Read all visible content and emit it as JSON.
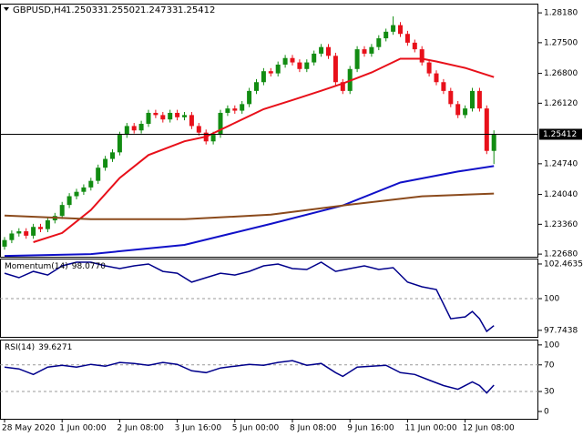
{
  "chart_data": [
    {
      "type": "candlestick",
      "title": "GBPUSD,H4",
      "categories": [
        "28 May 2020",
        null,
        null,
        null,
        null,
        null,
        null,
        null,
        "1 Jun 00:00",
        null,
        null,
        null,
        null,
        null,
        null,
        null,
        "2 Jun 08:00",
        null,
        null,
        null,
        null,
        null,
        null,
        null,
        "3 Jun 16:00",
        null,
        null,
        null,
        null,
        null,
        null,
        null,
        "5 Jun 00:00",
        null,
        null,
        null,
        null,
        null,
        null,
        null,
        "8 Jun 08:00",
        null,
        null,
        null,
        null,
        null,
        null,
        null,
        "9 Jun 16:00",
        null,
        null,
        null,
        null,
        null,
        null,
        null,
        "11 Jun 00:00",
        null,
        null,
        null,
        null,
        null,
        null,
        null,
        "12 Jun 08:00",
        null,
        null,
        null,
        null
      ],
      "open": [
        1.2285,
        1.23,
        1.2315,
        1.232,
        1.231,
        1.233,
        1.2325,
        1.2345,
        1.2355,
        1.238,
        1.24,
        1.241,
        1.242,
        1.2435,
        1.2465,
        1.2485,
        1.25,
        1.254,
        1.256,
        1.255,
        1.2565,
        1.259,
        1.2585,
        1.2575,
        1.259,
        1.258,
        1.2585,
        1.256,
        1.2545,
        1.2525,
        1.254,
        1.259,
        1.26,
        1.2595,
        1.261,
        1.264,
        1.266,
        1.2685,
        1.268,
        1.27,
        1.2715,
        1.2705,
        1.269,
        1.2705,
        1.2725,
        1.274,
        1.272,
        1.266,
        1.264,
        1.269,
        1.2735,
        1.2725,
        1.274,
        1.276,
        1.2775,
        1.279,
        1.277,
        1.275,
        1.2735,
        1.2705,
        1.268,
        1.266,
        1.264,
        1.261,
        1.2585,
        1.26,
        1.264,
        1.26,
        1.25033
      ],
      "high": [
        1.2307,
        1.2322,
        1.2327,
        1.2327,
        1.2337,
        1.2337,
        1.2352,
        1.2362,
        1.2387,
        1.2407,
        1.2417,
        1.2427,
        1.2442,
        1.2472,
        1.2492,
        1.2507,
        1.2547,
        1.2567,
        1.2567,
        1.2572,
        1.2597,
        1.2597,
        1.2592,
        1.2597,
        1.2597,
        1.2592,
        1.2592,
        1.2567,
        1.2552,
        1.2547,
        1.2597,
        1.2607,
        1.2607,
        1.2617,
        1.2647,
        1.2667,
        1.2692,
        1.2692,
        1.2707,
        1.2722,
        1.2722,
        1.2712,
        1.2712,
        1.2732,
        1.2747,
        1.2747,
        1.2727,
        1.2667,
        1.2697,
        1.2742,
        1.2742,
        1.2747,
        1.2767,
        1.2782,
        1.281,
        1.2797,
        1.2777,
        1.2757,
        1.2742,
        1.2712,
        1.2687,
        1.2667,
        1.2647,
        1.2617,
        1.2607,
        1.2647,
        1.2647,
        1.2607,
        1.25502
      ],
      "low": [
        1.2278,
        1.2293,
        1.2308,
        1.2303,
        1.2303,
        1.2318,
        1.2318,
        1.2338,
        1.2348,
        1.2373,
        1.2393,
        1.2403,
        1.2413,
        1.2428,
        1.2458,
        1.2478,
        1.2493,
        1.2533,
        1.2543,
        1.2543,
        1.2558,
        1.2578,
        1.2568,
        1.2568,
        1.2573,
        1.2573,
        1.2553,
        1.2538,
        1.2518,
        1.2518,
        1.2533,
        1.2583,
        1.2588,
        1.2588,
        1.2603,
        1.2633,
        1.2653,
        1.2673,
        1.2673,
        1.2693,
        1.2698,
        1.2683,
        1.2683,
        1.2698,
        1.2718,
        1.2713,
        1.2653,
        1.2633,
        1.2633,
        1.2683,
        1.2718,
        1.2718,
        1.2733,
        1.2753,
        1.2768,
        1.2763,
        1.2743,
        1.2728,
        1.2698,
        1.2673,
        1.2653,
        1.2633,
        1.2603,
        1.2578,
        1.2578,
        1.2593,
        1.2593,
        1.2496,
        1.24733
      ],
      "close": [
        1.23,
        1.2315,
        1.232,
        1.231,
        1.233,
        1.2325,
        1.2345,
        1.2355,
        1.238,
        1.24,
        1.241,
        1.242,
        1.2435,
        1.2465,
        1.2485,
        1.25,
        1.254,
        1.256,
        1.255,
        1.2565,
        1.259,
        1.2585,
        1.2575,
        1.259,
        1.258,
        1.2585,
        1.256,
        1.2545,
        1.2525,
        1.254,
        1.259,
        1.26,
        1.2595,
        1.261,
        1.264,
        1.266,
        1.2685,
        1.268,
        1.27,
        1.2715,
        1.2705,
        1.269,
        1.2705,
        1.2725,
        1.274,
        1.272,
        1.266,
        1.264,
        1.269,
        1.2735,
        1.2725,
        1.274,
        1.276,
        1.2775,
        1.279,
        1.277,
        1.275,
        1.2735,
        1.2705,
        1.268,
        1.266,
        1.264,
        1.261,
        1.2585,
        1.26,
        1.264,
        1.26,
        1.25033,
        1.25412
      ],
      "up_color": "#128c12",
      "down_color": "#e8101a",
      "overlays": [
        {
          "color": "#e8101a",
          "x": [
            4,
            8,
            12,
            16,
            20,
            25,
            28,
            32,
            36,
            40,
            44,
            47,
            51,
            55,
            58,
            60,
            64,
            68
          ],
          "values": [
            1.22952,
            1.23161,
            1.23684,
            1.24416,
            1.24939,
            1.25252,
            1.25357,
            1.25671,
            1.25984,
            1.26193,
            1.26403,
            1.2657,
            1.26821,
            1.27134,
            1.27134,
            1.27072,
            1.26925,
            1.26716
          ]
        },
        {
          "color": "#1010c8",
          "x": [
            0,
            12,
            25,
            37,
            47,
            55,
            63,
            68
          ],
          "values": [
            1.22638,
            1.2268,
            1.22889,
            1.2337,
            1.23789,
            1.24311,
            1.24562,
            1.24688
          ]
        },
        {
          "color": "#8b4a1c",
          "x": [
            0,
            12,
            25,
            37,
            47,
            58,
            68
          ],
          "values": [
            1.23559,
            1.23475,
            1.23475,
            1.23579,
            1.23789,
            1.23998,
            1.2406
          ]
        }
      ],
      "ylim": [
        1.2262,
        1.2839
      ],
      "yticks": [
        {
          "value": 1.2818,
          "label": "1.28180"
        },
        {
          "value": 1.275,
          "label": "1.27500"
        },
        {
          "value": 1.268,
          "label": "1.26800"
        },
        {
          "value": 1.2612,
          "label": "1.26120"
        },
        {
          "value": 1.2474,
          "label": "1.24740"
        },
        {
          "value": 1.2404,
          "label": "1.24040"
        },
        {
          "value": 1.2336,
          "label": "1.23360"
        },
        {
          "value": 1.2268,
          "label": "1.22680"
        }
      ]
    },
    {
      "type": "line",
      "title": "Momentum(14)",
      "current_label": "98.0770",
      "color": "#00008b",
      "x": [
        0,
        2,
        4,
        6,
        8,
        10,
        12,
        14,
        16,
        18,
        20,
        22,
        24,
        26,
        28,
        30,
        32,
        34,
        36,
        38,
        40,
        42,
        44,
        46,
        48,
        50,
        52,
        54,
        56,
        58,
        60,
        62,
        64,
        65,
        66,
        67,
        68
      ],
      "values": [
        101.81,
        101.49,
        101.94,
        101.68,
        102.33,
        102.59,
        102.59,
        102.33,
        102.14,
        102.33,
        102.46,
        101.94,
        101.81,
        101.17,
        101.49,
        101.81,
        101.68,
        101.94,
        102.33,
        102.46,
        102.14,
        102.07,
        102.59,
        101.94,
        102.14,
        102.33,
        102.07,
        102.2,
        101.17,
        100.84,
        100.65,
        98.57,
        98.7,
        99.09,
        98.57,
        97.67,
        98.077
      ],
      "levels": [
        100
      ],
      "ylim": [
        97.28,
        102.85
      ],
      "yticks": [
        102.4635,
        100,
        97.7438
      ]
    },
    {
      "type": "line",
      "title": "RSI(14)",
      "color": "#00008b",
      "x": [
        0,
        2,
        4,
        6,
        8,
        10,
        12,
        14,
        16,
        18,
        20,
        22,
        24,
        26,
        28,
        30,
        32,
        34,
        36,
        38,
        40,
        42,
        44,
        46,
        47,
        49,
        51,
        53,
        55,
        57,
        59,
        61,
        63,
        65,
        66,
        67,
        68
      ],
      "values": [
        66.7,
        63.9,
        55.6,
        66.7,
        69.4,
        66.7,
        70.8,
        68.1,
        73.6,
        72.2,
        69.4,
        73.6,
        70.8,
        61.1,
        58.3,
        65.3,
        68.1,
        70.8,
        69.4,
        73.6,
        76.4,
        69.4,
        72.2,
        58.3,
        52.8,
        66.7,
        68.1,
        69.4,
        58.3,
        55.6,
        47.2,
        38.9,
        33.3,
        44.4,
        38.9,
        27.8,
        39.6271
      ],
      "levels": [
        70,
        30
      ],
      "ylim": [
        -11,
        108
      ],
      "yticks": [
        100,
        70,
        30,
        0
      ]
    }
  ]
}
